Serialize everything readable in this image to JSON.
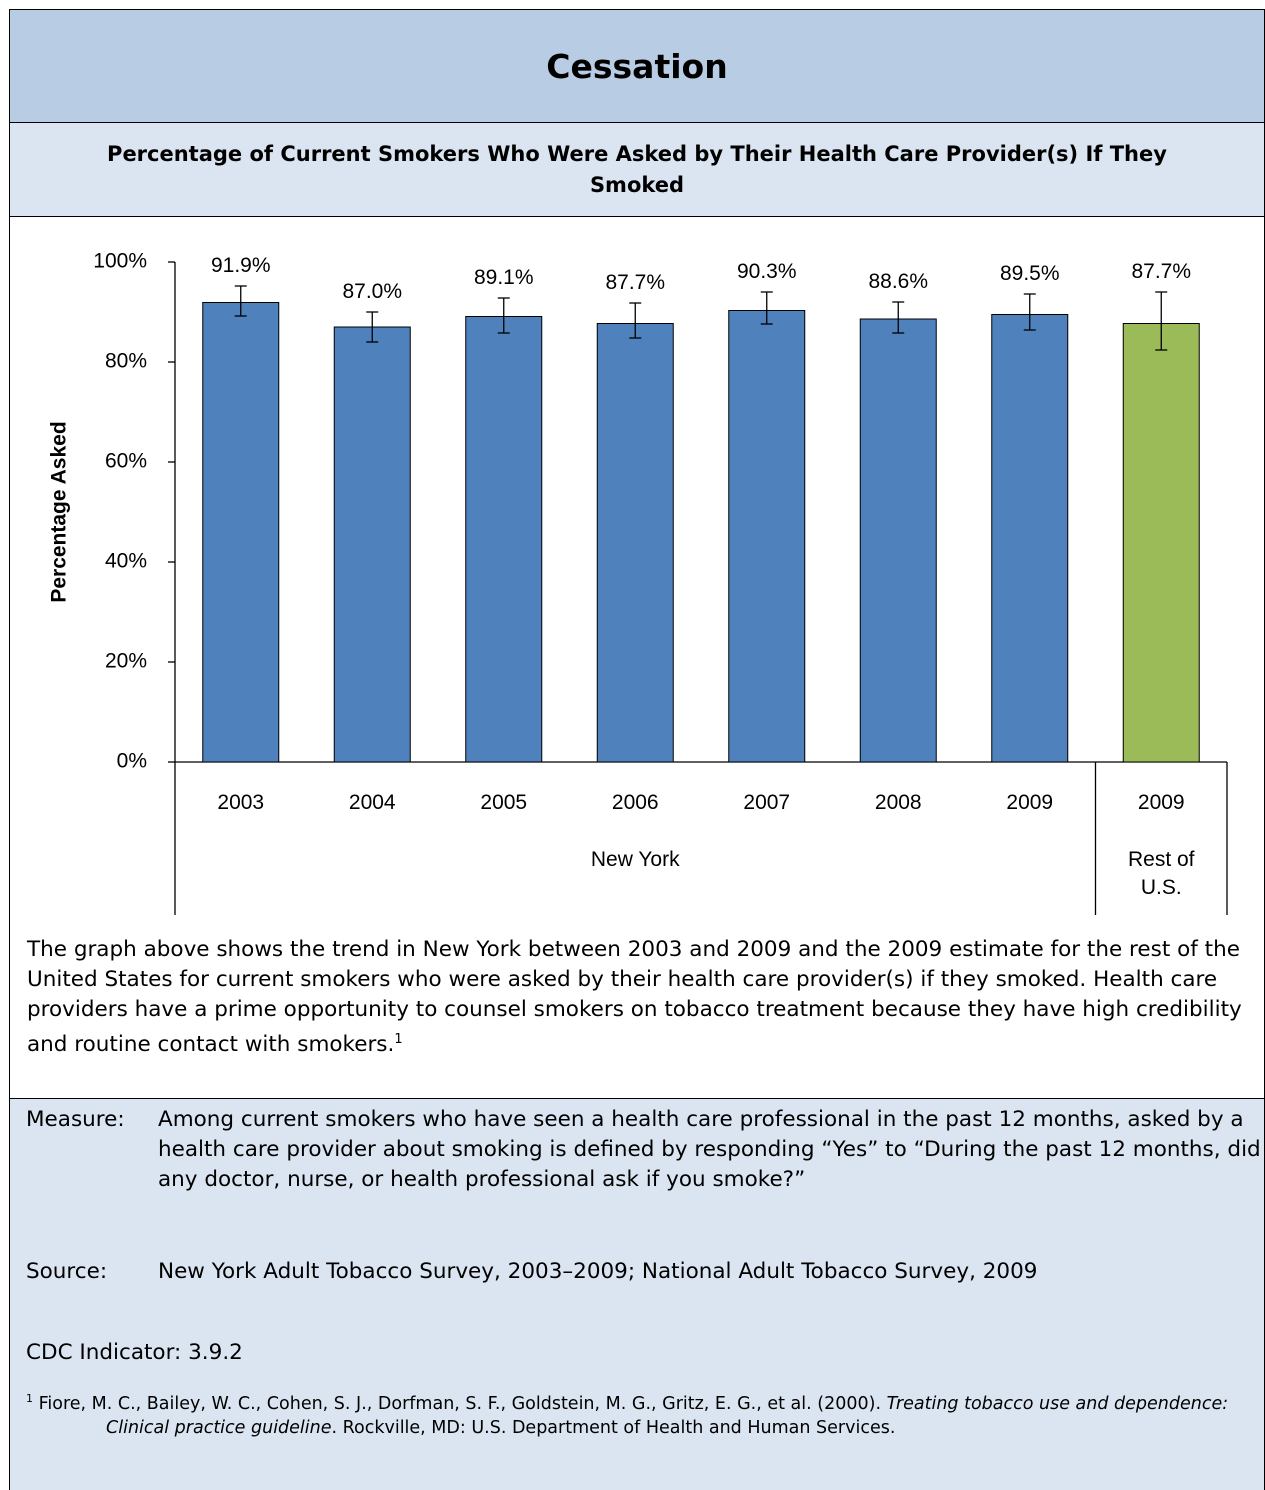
{
  "header": {
    "title": "Cessation"
  },
  "subtitle": "Percentage of Current Smokers Who Were Asked by Their Health Care Provider(s) If They Smoked",
  "chart_data": {
    "type": "bar",
    "y_label": "Percentage Asked",
    "categories": [
      "2003",
      "2004",
      "2005",
      "2006",
      "2007",
      "2008",
      "2009",
      "2009"
    ],
    "values": [
      91.9,
      87.0,
      89.1,
      87.7,
      90.3,
      88.6,
      89.5,
      87.7
    ],
    "value_labels": [
      "91.9%",
      "87.0%",
      "89.1%",
      "87.7%",
      "90.3%",
      "88.6%",
      "89.5%",
      "87.7%"
    ],
    "ci_low": [
      89.2,
      84.0,
      85.8,
      84.8,
      87.6,
      85.8,
      86.4,
      82.4
    ],
    "ci_high": [
      95.2,
      90.0,
      92.8,
      91.8,
      94.0,
      92.0,
      93.6,
      94.0
    ],
    "colors": [
      "#4f81bd",
      "#4f81bd",
      "#4f81bd",
      "#4f81bd",
      "#4f81bd",
      "#4f81bd",
      "#4f81bd",
      "#9bbb59"
    ],
    "groups": [
      {
        "label": "New York",
        "count": 7
      },
      {
        "label": "Rest of U.S.",
        "count": 1
      }
    ],
    "ylim": [
      0,
      100
    ],
    "yticks": [
      {
        "value": 0,
        "label": "0%"
      },
      {
        "value": 20,
        "label": "20%"
      },
      {
        "value": 40,
        "label": "40%"
      },
      {
        "value": 60,
        "label": "60%"
      },
      {
        "value": 80,
        "label": "80%"
      },
      {
        "value": 100,
        "label": "100%"
      }
    ]
  },
  "description": {
    "text": "The graph above shows the trend in New York between 2003 and 2009 and the 2009 estimate for the rest of the United States for current smokers who were asked by their health care provider(s) if they smoked. Health care providers have a prime opportunity to counsel smokers on tobacco treatment because they have high credibility and routine contact with smokers.",
    "note_ref": "1"
  },
  "notes": {
    "measure": {
      "label": "Measure:",
      "text": "Among current smokers who have seen a health care professional in the past 12 months, asked by a health care provider about smoking is defined by responding “Yes” to “During the past 12 months, did any doctor, nurse, or health professional ask if you smoke?”"
    },
    "source": {
      "label": "Source:",
      "text": "New York Adult Tobacco Survey, 2003–2009; National Adult Tobacco Survey, 2009"
    },
    "indicator": "CDC Indicator: 3.9.2",
    "footnote": {
      "marker": "1",
      "authors": "Fiore, M. C., Bailey, W. C., Cohen, S. J., Dorfman, S. F., Goldstein, M. G., Gritz, E. G., et al. (2000).",
      "title": "Treating tobacco use and dependence: Clinical practice guideline",
      "rest": ". Rockville, MD: U.S. Department of Health and Human Services."
    }
  }
}
